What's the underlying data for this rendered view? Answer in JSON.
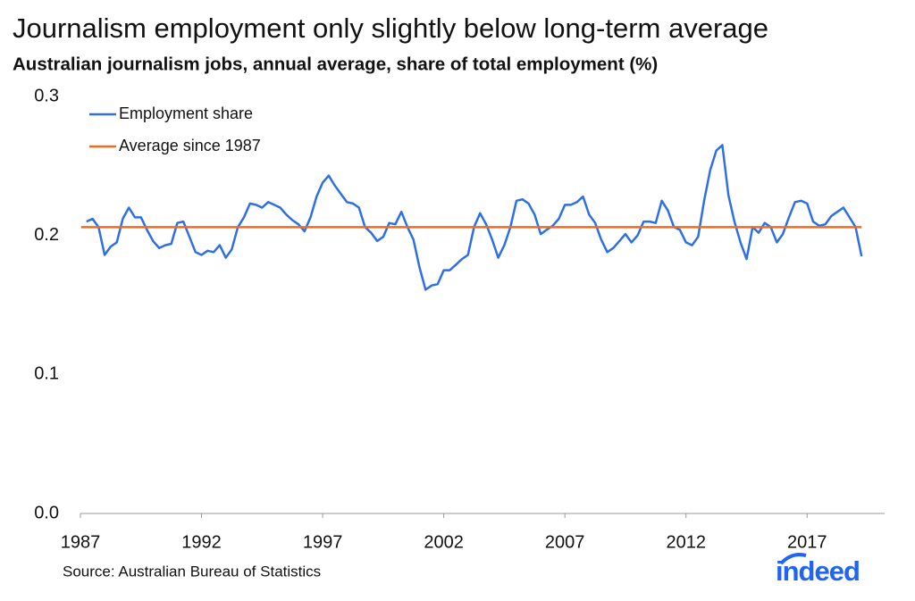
{
  "chart_data": {
    "type": "line",
    "title": "Journalism employment only slightly below long-term average",
    "subtitle": "Australian journalism jobs, annual average, share of total employment (%)",
    "source": "Source: Australian Bureau of Statistics",
    "logo": "indeed",
    "x": [
      1987.25,
      1987.5,
      1987.75,
      1988,
      1988.25,
      1988.5,
      1988.75,
      1989,
      1989.25,
      1989.5,
      1989.75,
      1990,
      1990.25,
      1990.5,
      1990.75,
      1991,
      1991.25,
      1991.5,
      1991.75,
      1992,
      1992.25,
      1992.5,
      1992.75,
      1993,
      1993.25,
      1993.5,
      1993.75,
      1994,
      1994.25,
      1994.5,
      1994.75,
      1995,
      1995.25,
      1995.5,
      1995.75,
      1996,
      1996.25,
      1996.5,
      1996.75,
      1997,
      1997.25,
      1997.5,
      1997.75,
      1998,
      1998.25,
      1998.5,
      1998.75,
      1999,
      1999.25,
      1999.5,
      1999.75,
      2000,
      2000.25,
      2000.5,
      2000.75,
      2001,
      2001.25,
      2001.5,
      2001.75,
      2002,
      2002.25,
      2002.5,
      2002.75,
      2003,
      2003.25,
      2003.5,
      2003.75,
      2004,
      2004.25,
      2004.5,
      2004.75,
      2005,
      2005.25,
      2005.5,
      2005.75,
      2006,
      2006.25,
      2006.5,
      2006.75,
      2007,
      2007.25,
      2007.5,
      2007.75,
      2008,
      2008.25,
      2008.5,
      2008.75,
      2009,
      2009.25,
      2009.5,
      2009.75,
      2010,
      2010.25,
      2010.5,
      2010.75,
      2011,
      2011.25,
      2011.5,
      2011.75,
      2012,
      2012.25,
      2012.5,
      2012.75,
      2013,
      2013.25,
      2013.5,
      2013.75,
      2014,
      2014.25,
      2014.5,
      2014.75,
      2015,
      2015.25,
      2015.5,
      2015.75,
      2016,
      2016.25,
      2016.5,
      2016.75,
      2017,
      2017.25,
      2017.5,
      2017.75,
      2018,
      2018.25,
      2018.5,
      2018.75,
      2019,
      2019.25
    ],
    "series": [
      {
        "name": "Employment share",
        "color": "#2f6fe4",
        "values": [
          0.21,
          0.212,
          0.206,
          0.186,
          0.192,
          0.195,
          0.212,
          0.22,
          0.213,
          0.213,
          0.204,
          0.196,
          0.191,
          0.193,
          0.194,
          0.209,
          0.21,
          0.199,
          0.188,
          0.186,
          0.189,
          0.188,
          0.193,
          0.184,
          0.19,
          0.206,
          0.213,
          0.223,
          0.222,
          0.22,
          0.224,
          0.222,
          0.22,
          0.215,
          0.211,
          0.208,
          0.203,
          0.213,
          0.228,
          0.238,
          0.243,
          0.236,
          0.23,
          0.224,
          0.223,
          0.22,
          0.206,
          0.202,
          0.196,
          0.199,
          0.209,
          0.208,
          0.217,
          0.206,
          0.197,
          0.177,
          0.161,
          0.164,
          0.165,
          0.175,
          0.175,
          0.179,
          0.183,
          0.186,
          0.206,
          0.216,
          0.208,
          0.197,
          0.184,
          0.193,
          0.206,
          0.225,
          0.226,
          0.223,
          0.215,
          0.201,
          0.204,
          0.207,
          0.212,
          0.222,
          0.222,
          0.224,
          0.228,
          0.215,
          0.209,
          0.197,
          0.188,
          0.191,
          0.196,
          0.201,
          0.195,
          0.2,
          0.21,
          0.21,
          0.209,
          0.225,
          0.218,
          0.206,
          0.204,
          0.195,
          0.193,
          0.199,
          0.225,
          0.247,
          0.261,
          0.265,
          0.229,
          0.21,
          0.195,
          0.183,
          0.206,
          0.202,
          0.209,
          0.206,
          0.195,
          0.201,
          0.213,
          0.224,
          0.225,
          0.223,
          0.21,
          0.207,
          0.208,
          0.214,
          0.217,
          0.22,
          0.213,
          0.206,
          0.185
        ]
      },
      {
        "name": "Average since 1987",
        "color": "#f26b1d",
        "value": 0.206
      }
    ],
    "xlim": [
      1987,
      2020.2
    ],
    "ylim": [
      0,
      0.3
    ],
    "xticks": [
      1987,
      1992,
      1997,
      2002,
      2007,
      2012,
      2017
    ],
    "yticks": [
      {
        "value": 0,
        "label": "0.0"
      },
      0.1,
      0.2,
      0.3
    ],
    "legend": "top-left",
    "grid": false
  }
}
